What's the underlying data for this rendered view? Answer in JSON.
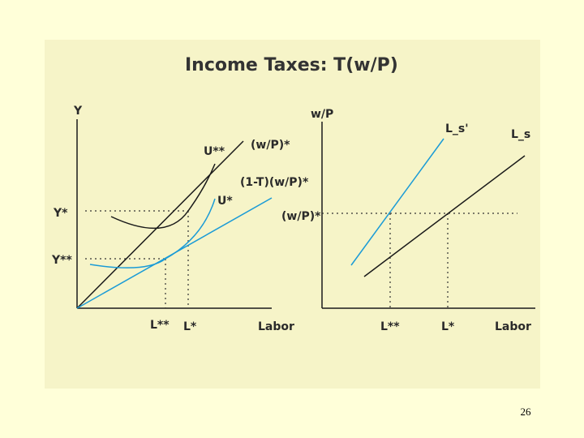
{
  "title": "Income Taxes: T(w/P)",
  "page_number": "26",
  "colors": {
    "background": "#ffffd9",
    "panel": "#f6f4c8",
    "black_line": "#1a1a1a",
    "blue_line": "#1a9bd6"
  },
  "left_graph": {
    "y_axis_label": "Y",
    "x_axis_label": "Labor",
    "y_star": "Y*",
    "y_double_star": "Y**",
    "l_double_star": "L**",
    "l_star": "L*",
    "curve_u_double_star": "U**",
    "curve_u_star": "U*",
    "line_pretax": "(w/P)*",
    "line_aftertax": "(1-T)(w/P)*"
  },
  "right_graph": {
    "y_axis_label": "w/P",
    "x_axis_label": "Labor",
    "wage_level": "(w/P)*",
    "supply_shifted": "L_s'",
    "supply_original": "L_s",
    "l_double_star": "L**",
    "l_star": "L*"
  }
}
